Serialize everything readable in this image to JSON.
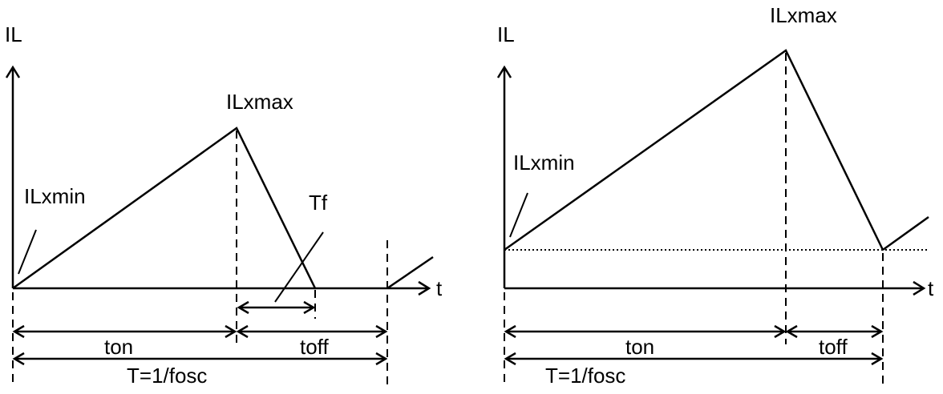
{
  "left": {
    "y_axis_label": "IL",
    "x_axis_label": "t",
    "peak_label": "ILxmax",
    "min_label": "ILxmin",
    "fall_label": "Tf",
    "ton_label": "ton",
    "toff_label": "toff",
    "period_label": "T=1/fosc"
  },
  "right": {
    "y_axis_label": "IL",
    "x_axis_label": "t",
    "peak_label": "ILxmax",
    "min_label": "ILxmin",
    "ton_label": "ton",
    "toff_label": "toff",
    "period_label": "T=1/fosc"
  }
}
